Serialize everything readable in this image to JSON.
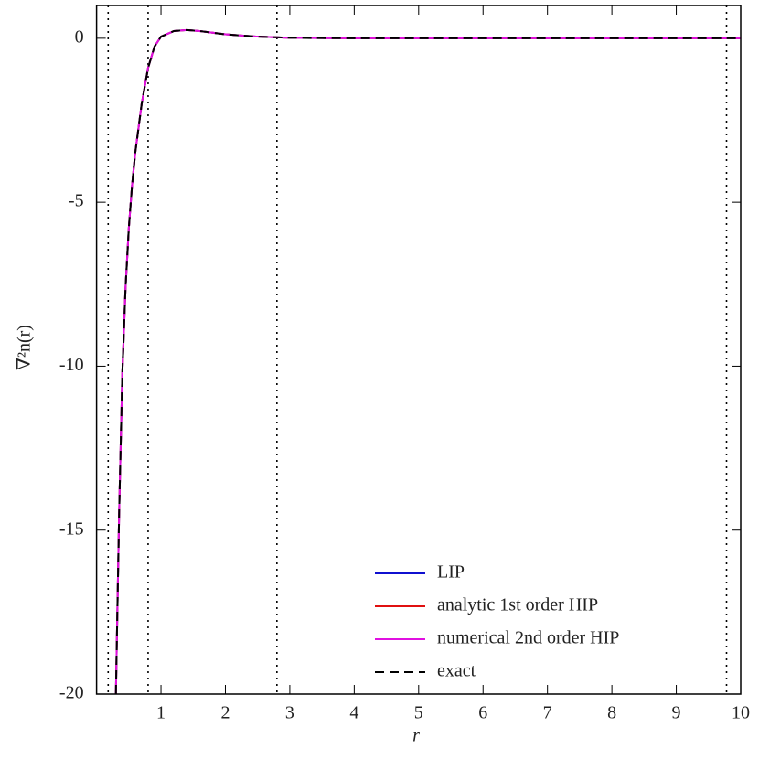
{
  "chart_data": {
    "type": "line",
    "xlabel": "r",
    "ylabel": "∇²n(r)",
    "xlim": [
      0,
      10
    ],
    "ylim": [
      -20,
      1
    ],
    "xticks": [
      1,
      2,
      3,
      4,
      5,
      6,
      7,
      8,
      9,
      10
    ],
    "yticks": [
      0,
      -5,
      -10,
      -15,
      -20
    ],
    "vlines": [
      0.18,
      0.8,
      2.8,
      9.78
    ],
    "legend": "lower right",
    "x": [
      0.3,
      0.35,
      0.4,
      0.45,
      0.5,
      0.55,
      0.6,
      0.7,
      0.8,
      0.9,
      1.0,
      1.2,
      1.4,
      1.6,
      1.8,
      2.0,
      2.5,
      3.0,
      3.5,
      4,
      5,
      6,
      7,
      8,
      9,
      10
    ],
    "series": [
      {
        "name": "LIP",
        "color": "#1010d0",
        "linestyle": "solid",
        "values": [
          -20,
          -14.5,
          -10.2,
          -7.6,
          -5.8,
          -4.5,
          -3.5,
          -2.0,
          -0.9,
          -0.25,
          0.05,
          0.22,
          0.25,
          0.22,
          0.17,
          0.12,
          0.05,
          0.015,
          0.005,
          0,
          0,
          0,
          0,
          0,
          0,
          0
        ]
      },
      {
        "name": "analytic 1st order HIP",
        "color": "#e01010",
        "linestyle": "solid",
        "values": [
          -20,
          -14.5,
          -10.2,
          -7.6,
          -5.8,
          -4.5,
          -3.5,
          -2.0,
          -0.9,
          -0.25,
          0.05,
          0.22,
          0.25,
          0.22,
          0.17,
          0.12,
          0.05,
          0.015,
          0.005,
          0,
          0,
          0,
          0,
          0,
          0,
          0
        ]
      },
      {
        "name": "numerical 2nd order HIP",
        "color": "#e010e0",
        "linestyle": "solid",
        "values": [
          -20,
          -14.5,
          -10.2,
          -7.6,
          -5.8,
          -4.5,
          -3.5,
          -2.0,
          -0.9,
          -0.25,
          0.05,
          0.22,
          0.25,
          0.22,
          0.17,
          0.12,
          0.05,
          0.015,
          0.005,
          0,
          0,
          0,
          0,
          0,
          0,
          0
        ]
      },
      {
        "name": "exact",
        "color": "#000000",
        "linestyle": "dashed",
        "values": [
          -20,
          -14.5,
          -10.2,
          -7.6,
          -5.8,
          -4.5,
          -3.5,
          -2.0,
          -0.9,
          -0.25,
          0.05,
          0.22,
          0.25,
          0.22,
          0.17,
          0.12,
          0.05,
          0.015,
          0.005,
          0,
          0,
          0,
          0,
          0,
          0,
          0
        ]
      }
    ]
  }
}
